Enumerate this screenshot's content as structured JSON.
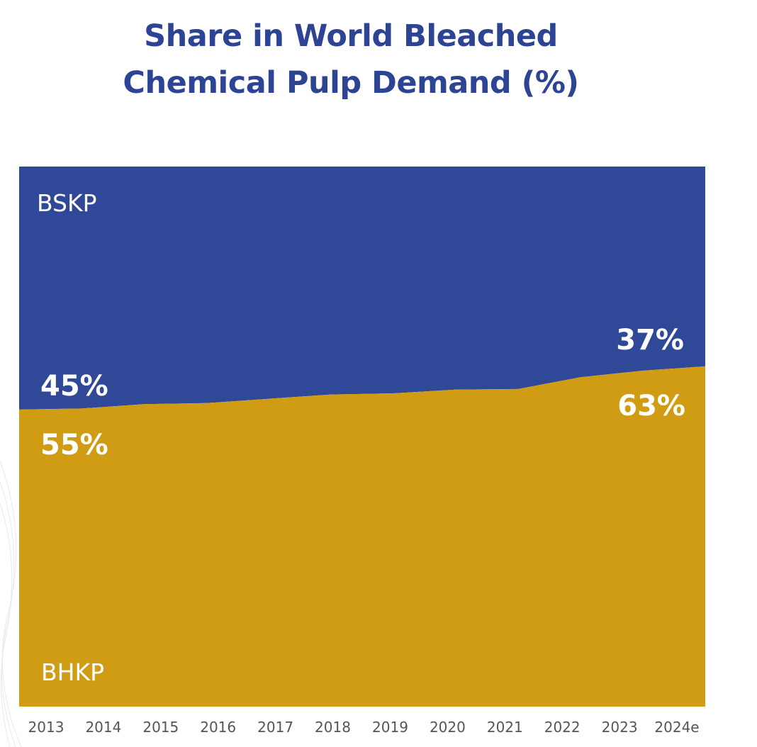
{
  "colors": {
    "title": "#2d4393",
    "bskp": "#2f4898",
    "bhkp": "#d09c14",
    "label": "#ffffff",
    "tick": "#555555"
  },
  "chart_data": {
    "type": "area",
    "stacked": true,
    "normalized_percent": true,
    "title_lines": [
      "Share in World Bleached",
      "Chemical Pulp Demand (%)"
    ],
    "x": [
      "2013",
      "2014",
      "2015",
      "2016",
      "2017",
      "2018",
      "2019",
      "2020",
      "2021",
      "2022",
      "2023",
      "2024e"
    ],
    "series": [
      {
        "name": "BHKP",
        "color": "#d09c14",
        "values": [
          55,
          55.2,
          56,
          56.2,
          57,
          57.8,
          58,
          58.7,
          58.8,
          61,
          62.2,
          63
        ]
      },
      {
        "name": "BSKP",
        "color": "#2f4898",
        "values": [
          45,
          44.8,
          44,
          43.8,
          43,
          42.2,
          42,
          41.3,
          41.2,
          39,
          37.8,
          37
        ]
      }
    ],
    "ylim": [
      0,
      100
    ],
    "annotations": {
      "bskp_start": "45%",
      "bhkp_start": "55%",
      "bskp_end": "37%",
      "bhkp_end": "63%"
    },
    "grid": false,
    "legend": "in-plot labels"
  }
}
